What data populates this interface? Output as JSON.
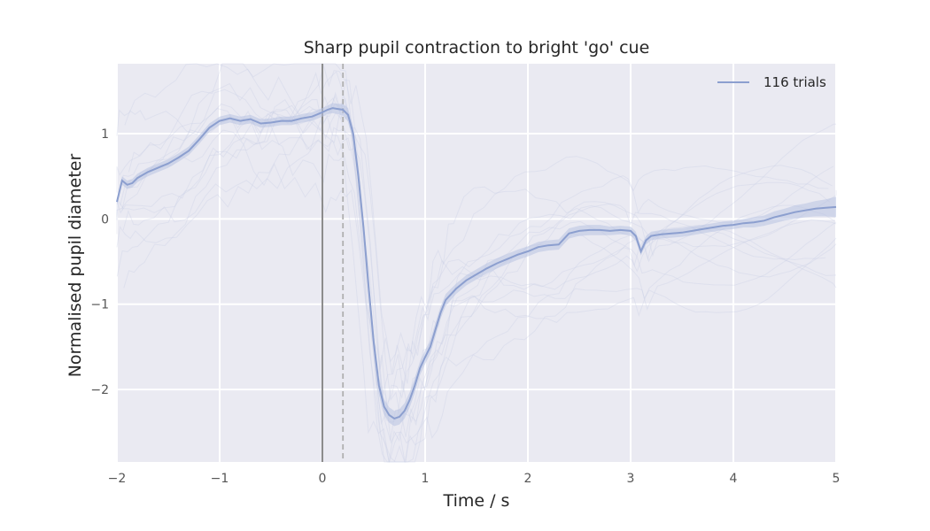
{
  "chart_data": {
    "type": "line",
    "title": "Sharp pupil contraction to bright 'go' cue",
    "xlabel": "Time / s",
    "ylabel": "Normalised pupil diameter",
    "xlim": [
      -2,
      5
    ],
    "ylim": [
      -2.85,
      1.82
    ],
    "xticks": [
      -2,
      -1,
      0,
      1,
      2,
      3,
      4,
      5
    ],
    "xtick_labels": [
      "−2",
      "−1",
      "0",
      "1",
      "2",
      "3",
      "4",
      "5"
    ],
    "yticks": [
      -2,
      -1,
      0,
      1
    ],
    "ytick_labels": [
      "−2",
      "−1",
      "0",
      "1"
    ],
    "grid": true,
    "legend_position": "top-right",
    "vlines": [
      {
        "x": 0,
        "style": "solid",
        "color": "#808080"
      },
      {
        "x": 0.2,
        "style": "dashed",
        "color": "#b0b0b0"
      }
    ],
    "series": [
      {
        "name": "116 trials",
        "color": "#8c9fcf",
        "x": [
          -2.0,
          -1.95,
          -1.9,
          -1.85,
          -1.8,
          -1.7,
          -1.6,
          -1.5,
          -1.4,
          -1.3,
          -1.2,
          -1.1,
          -1.0,
          -0.9,
          -0.8,
          -0.7,
          -0.6,
          -0.5,
          -0.4,
          -0.3,
          -0.2,
          -0.1,
          0.0,
          0.05,
          0.1,
          0.15,
          0.2,
          0.25,
          0.3,
          0.35,
          0.4,
          0.45,
          0.5,
          0.55,
          0.6,
          0.65,
          0.7,
          0.75,
          0.8,
          0.85,
          0.9,
          0.95,
          1.0,
          1.05,
          1.1,
          1.15,
          1.2,
          1.3,
          1.4,
          1.5,
          1.6,
          1.7,
          1.8,
          1.9,
          2.0,
          2.1,
          2.2,
          2.3,
          2.4,
          2.5,
          2.6,
          2.7,
          2.8,
          2.9,
          3.0,
          3.05,
          3.1,
          3.15,
          3.2,
          3.3,
          3.4,
          3.5,
          3.6,
          3.7,
          3.8,
          3.9,
          4.0,
          4.1,
          4.2,
          4.3,
          4.4,
          4.5,
          4.6,
          4.7,
          4.8,
          4.9,
          5.0
        ],
        "values": [
          0.2,
          0.45,
          0.4,
          0.42,
          0.48,
          0.55,
          0.6,
          0.65,
          0.72,
          0.8,
          0.93,
          1.07,
          1.15,
          1.18,
          1.15,
          1.17,
          1.12,
          1.13,
          1.15,
          1.15,
          1.18,
          1.2,
          1.25,
          1.28,
          1.3,
          1.29,
          1.28,
          1.22,
          1.0,
          0.5,
          -0.1,
          -0.8,
          -1.45,
          -1.95,
          -2.2,
          -2.3,
          -2.34,
          -2.32,
          -2.25,
          -2.12,
          -1.95,
          -1.75,
          -1.62,
          -1.5,
          -1.3,
          -1.1,
          -0.95,
          -0.82,
          -0.72,
          -0.65,
          -0.58,
          -0.52,
          -0.47,
          -0.42,
          -0.38,
          -0.33,
          -0.31,
          -0.3,
          -0.17,
          -0.14,
          -0.13,
          -0.13,
          -0.14,
          -0.13,
          -0.14,
          -0.2,
          -0.38,
          -0.25,
          -0.2,
          -0.18,
          -0.17,
          -0.16,
          -0.14,
          -0.12,
          -0.1,
          -0.08,
          -0.07,
          -0.05,
          -0.04,
          -0.02,
          0.02,
          0.05,
          0.08,
          0.1,
          0.12,
          0.13,
          0.14
        ],
        "ci_halfwidth": [
          0.04,
          0.05,
          0.05,
          0.05,
          0.05,
          0.05,
          0.05,
          0.05,
          0.05,
          0.05,
          0.05,
          0.05,
          0.05,
          0.05,
          0.05,
          0.05,
          0.05,
          0.05,
          0.05,
          0.05,
          0.05,
          0.05,
          0.05,
          0.05,
          0.06,
          0.06,
          0.07,
          0.08,
          0.08,
          0.1,
          0.1,
          0.1,
          0.1,
          0.1,
          0.09,
          0.09,
          0.09,
          0.09,
          0.09,
          0.09,
          0.09,
          0.08,
          0.08,
          0.08,
          0.08,
          0.07,
          0.07,
          0.06,
          0.06,
          0.06,
          0.06,
          0.06,
          0.06,
          0.06,
          0.06,
          0.06,
          0.06,
          0.06,
          0.06,
          0.06,
          0.06,
          0.06,
          0.05,
          0.05,
          0.05,
          0.05,
          0.05,
          0.05,
          0.05,
          0.05,
          0.05,
          0.05,
          0.05,
          0.05,
          0.05,
          0.05,
          0.05,
          0.05,
          0.06,
          0.06,
          0.07,
          0.07,
          0.08,
          0.08,
          0.09,
          0.1,
          0.12
        ]
      }
    ]
  },
  "colors": {
    "plot_background": "#eaeaf2",
    "grid": "#ffffff",
    "band": "#b8c3e2"
  }
}
